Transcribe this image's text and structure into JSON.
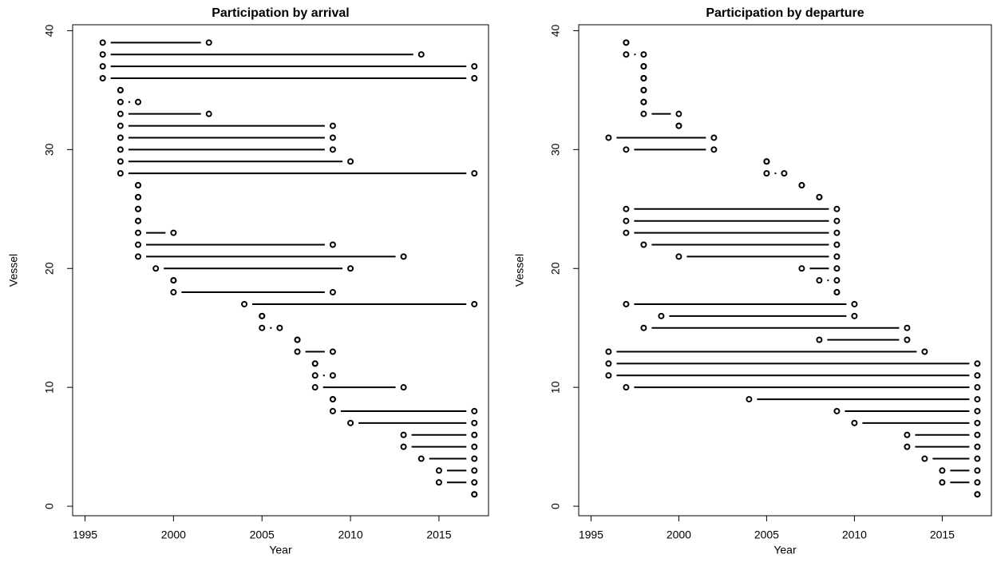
{
  "chart_data": [
    {
      "type": "segment",
      "title": "Participation by arrival",
      "x_label": "Year",
      "y_label": "Vessel",
      "y": [
        1,
        2,
        3,
        4,
        5,
        6,
        7,
        8,
        9,
        10,
        11,
        12,
        13,
        14,
        15,
        16,
        17,
        18,
        19,
        20,
        21,
        22,
        23,
        24,
        25,
        26,
        27,
        28,
        29,
        30,
        31,
        32,
        33,
        34,
        35,
        36,
        37,
        38,
        39
      ],
      "start": [
        2017,
        2015,
        2015,
        2014,
        2013,
        2013,
        2010,
        2009,
        2009,
        2008,
        2008,
        2008,
        2007,
        2007,
        2005,
        2005,
        2004,
        2000,
        2000,
        1999,
        1998,
        1998,
        1998,
        1998,
        1998,
        1998,
        1998,
        1997,
        1997,
        1997,
        1997,
        1997,
        1997,
        1997,
        1997,
        1996,
        1996,
        1996,
        1996
      ],
      "end": [
        2017,
        2017,
        2017,
        2017,
        2017,
        2017,
        2017,
        2017,
        2009,
        2013,
        2009,
        2008,
        2009,
        2007,
        2006,
        2005,
        2017,
        2009,
        2000,
        2010,
        2013,
        2009,
        2000,
        1998,
        1998,
        1998,
        1998,
        2017,
        2010,
        2009,
        2009,
        2009,
        2002,
        1998,
        1997,
        2017,
        2017,
        2014,
        2002
      ],
      "color": "#000000",
      "xlim": [
        1994.3,
        2017.8
      ],
      "xticks": [
        1995,
        2000,
        2005,
        2010,
        2015
      ],
      "ylim": [
        -0.8,
        40.5
      ],
      "yticks": [
        0,
        10,
        20,
        30,
        40
      ]
    },
    {
      "type": "segment",
      "title": "Participation by departure",
      "x_label": "Year",
      "y_label": "Vessel",
      "y": [
        1,
        2,
        3,
        4,
        5,
        6,
        7,
        8,
        9,
        10,
        11,
        12,
        13,
        14,
        15,
        16,
        17,
        18,
        19,
        20,
        21,
        22,
        23,
        24,
        25,
        26,
        27,
        28,
        29,
        30,
        31,
        32,
        33,
        34,
        35,
        36,
        37,
        38,
        39
      ],
      "start": [
        2017,
        2015,
        2015,
        2014,
        2013,
        2013,
        2010,
        2009,
        2004,
        1997,
        1996,
        1996,
        1996,
        2008,
        1998,
        1999,
        1997,
        2009,
        2008,
        2007,
        2000,
        1998,
        1997,
        1997,
        1997,
        2008,
        2007,
        2005,
        2005,
        1997,
        1996,
        2000,
        1998,
        1998,
        1998,
        1998,
        1998,
        1997,
        1997
      ],
      "end": [
        2017,
        2017,
        2017,
        2017,
        2017,
        2017,
        2017,
        2017,
        2017,
        2017,
        2017,
        2017,
        2014,
        2013,
        2013,
        2010,
        2010,
        2009,
        2009,
        2009,
        2009,
        2009,
        2009,
        2009,
        2009,
        2008,
        2007,
        2006,
        2005,
        2002,
        2002,
        2000,
        2000,
        1998,
        1998,
        1998,
        1998,
        1998,
        1997
      ],
      "color": "#000000",
      "xlim": [
        1994.3,
        2017.8
      ],
      "xticks": [
        1995,
        2000,
        2005,
        2010,
        2015
      ],
      "ylim": [
        -0.8,
        40.5
      ],
      "yticks": [
        0,
        10,
        20,
        30,
        40
      ]
    }
  ]
}
